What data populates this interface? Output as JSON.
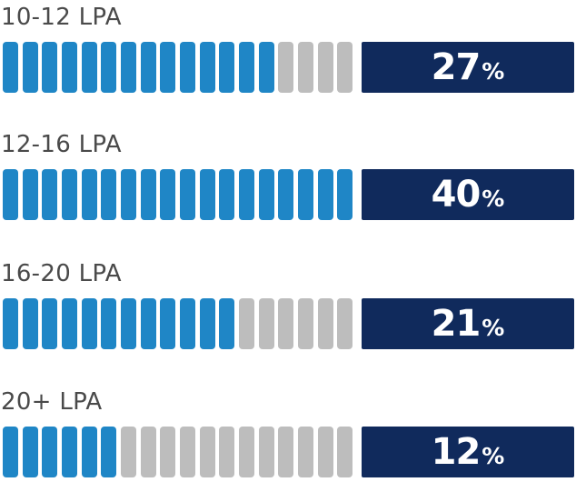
{
  "chart_data": {
    "type": "bar",
    "categories": [
      "10-12 LPA",
      "12-16 LPA",
      "16-20 LPA",
      "20+ LPA"
    ],
    "values": [
      27,
      40,
      21,
      12
    ],
    "value_suffix": "%",
    "segments_total": 18,
    "segments_filled": [
      14,
      18,
      12,
      6
    ],
    "colors": {
      "filled": "#1f86c6",
      "empty": "#bdbdbd",
      "value_box": "#102a5c",
      "label": "#4a4a4a"
    }
  }
}
